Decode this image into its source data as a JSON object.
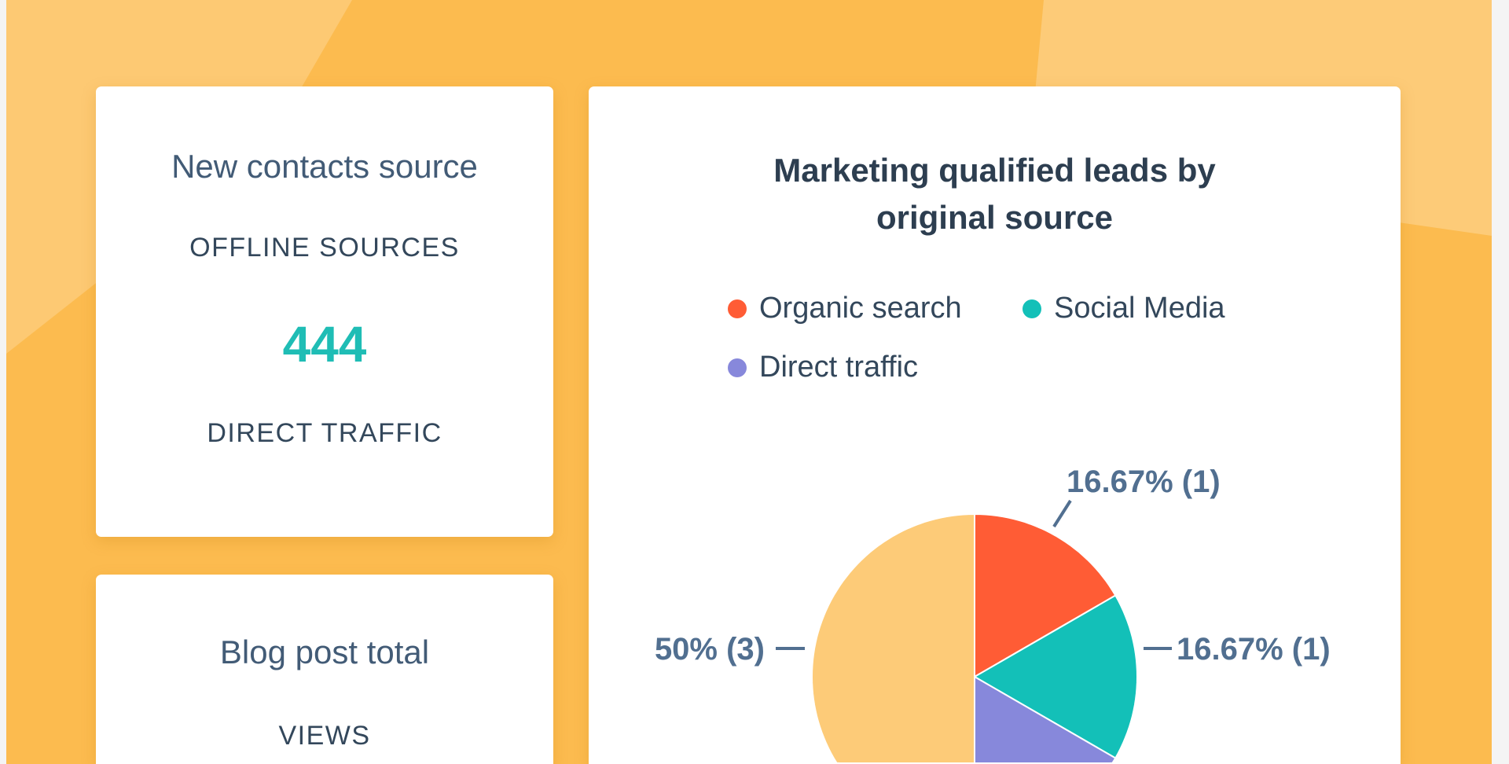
{
  "colors": {
    "background": "#fcbb4f",
    "background_light": "#fdcf82",
    "accent_teal": "#1fbdb5"
  },
  "contacts_card": {
    "title": "New contacts source",
    "label_top": "OFFLINE SOURCES",
    "value": "444",
    "label_bottom": "DIRECT TRAFFIC"
  },
  "blog_card": {
    "title": "Blog post total",
    "label": "VIEWS"
  },
  "chart_data": {
    "type": "pie",
    "title_line1": "Marketing qualified leads by",
    "title_line2": "original source",
    "legend_placement": "top",
    "legend": [
      {
        "name": "Organic search",
        "color": "#ff5c35"
      },
      {
        "name": "Social Media",
        "color": "#13c0b8"
      },
      {
        "name": "Direct traffic",
        "color": "#8788db"
      }
    ],
    "slices": [
      {
        "name": "Organic search",
        "value": 1,
        "percent": 16.67,
        "label": "16.67% (1)",
        "color": "#ff5c35"
      },
      {
        "name": "Social Media",
        "value": 1,
        "percent": 16.67,
        "label": "16.67% (1)",
        "color": "#13c0b8"
      },
      {
        "name": "Direct traffic",
        "value": 1,
        "percent": 16.67,
        "color": "#8788db"
      },
      {
        "value": 3,
        "percent": 50,
        "label": "50% (3)",
        "color": "#fdcb78"
      }
    ]
  }
}
